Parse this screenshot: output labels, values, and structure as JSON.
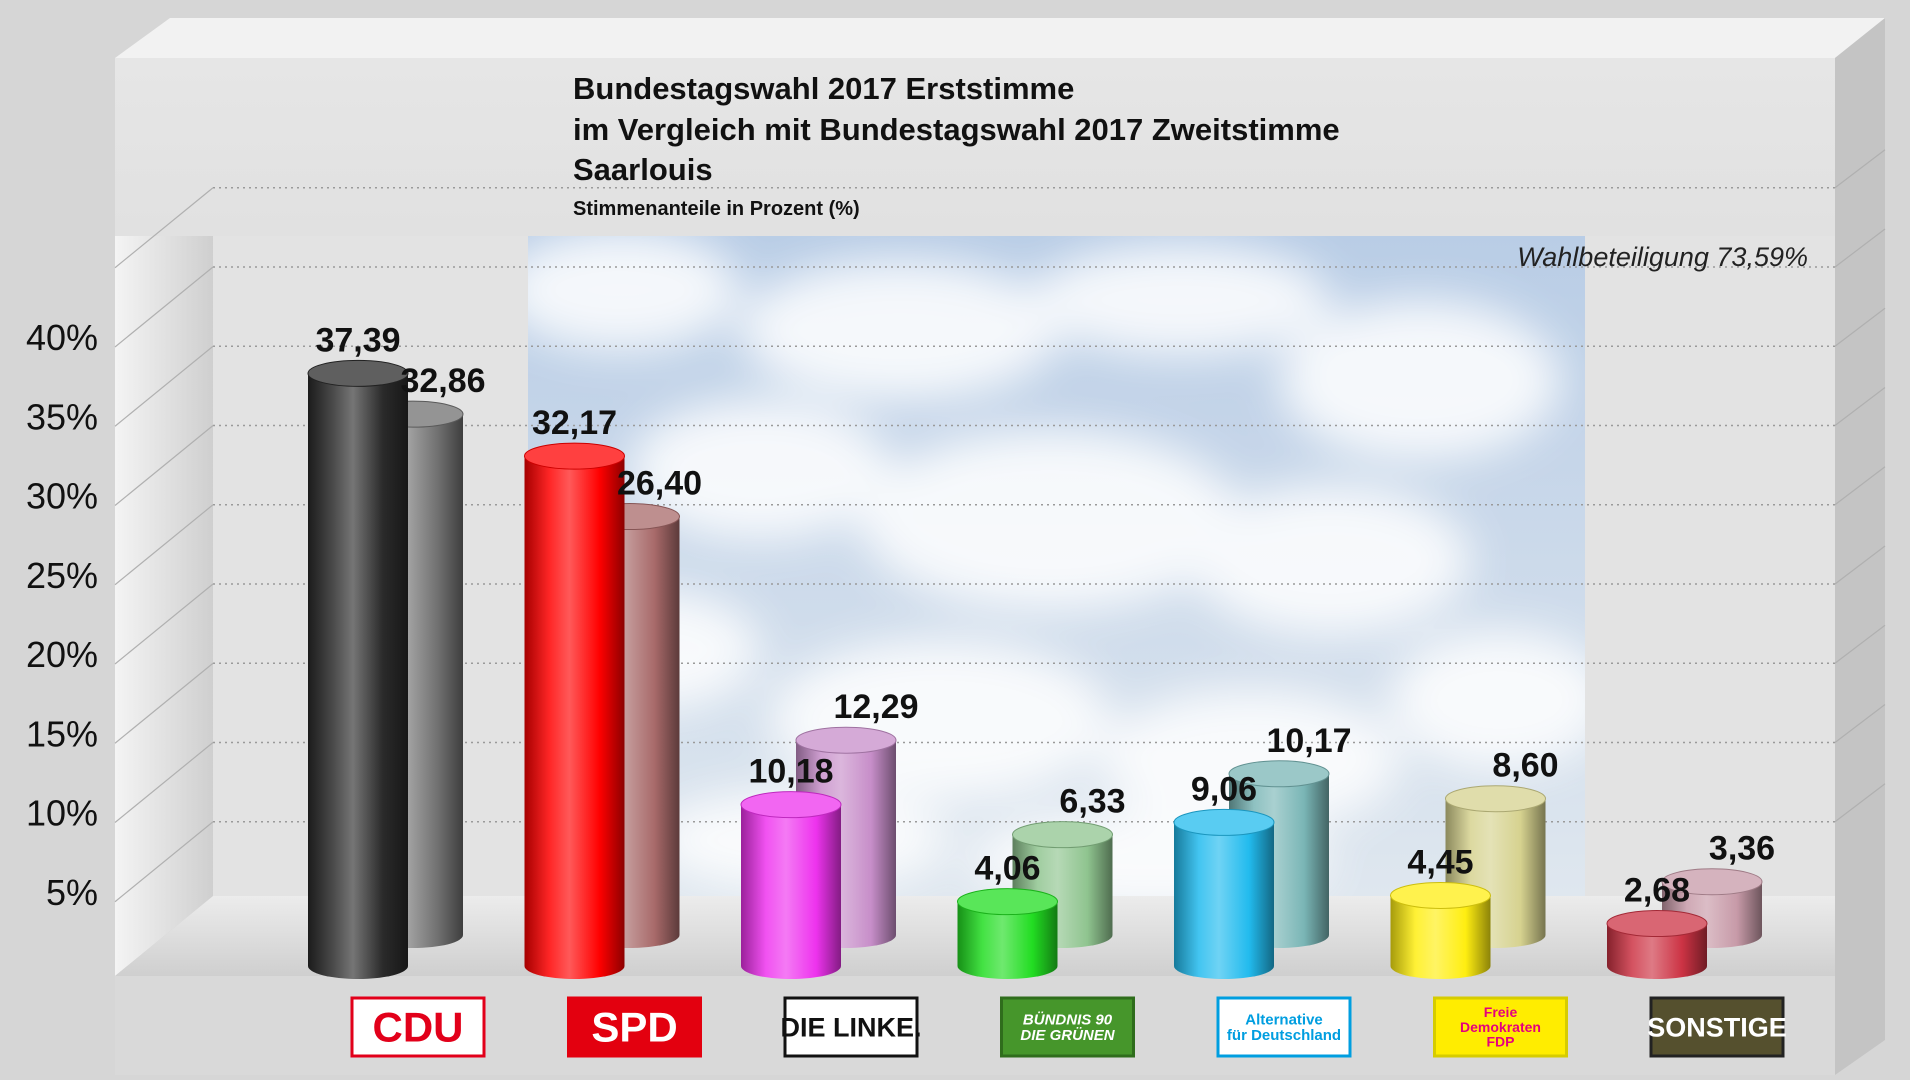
{
  "chart_data": {
    "type": "bar",
    "title": "Bundestagswahl 2017 Erststimme",
    "title_line2": "im Vergleich mit Bundestagswahl 2017 Zweitstimme",
    "title_line3": "Saarlouis",
    "subtitle": "Stimmenanteile in Prozent (%)",
    "annotation": "Wahlbeteiligung 73,59%",
    "categories": [
      "CDU",
      "SPD",
      "DIE LINKE.",
      "BÜNDNIS 90 DIE GRÜNEN",
      "Alternative für Deutschland",
      "Freie Demokraten FDP",
      "SONSTIGE"
    ],
    "series": [
      {
        "values": [
          37.39,
          32.17,
          10.18,
          4.06,
          9.06,
          4.45,
          2.68
        ],
        "labels": [
          "37,39",
          "32,17",
          "10,18",
          "4,06",
          "9,06",
          "4,45",
          "2,68"
        ]
      },
      {
        "values": [
          32.86,
          26.4,
          12.29,
          6.33,
          10.17,
          8.6,
          3.36
        ],
        "labels": [
          "32,86",
          "26,40",
          "12,29",
          "6,33",
          "10,17",
          "8,60",
          "3,36"
        ]
      }
    ],
    "ytick_labels": [
      "5%",
      "10%",
      "15%",
      "20%",
      "25%",
      "30%",
      "35%",
      "40%"
    ],
    "ylim": [
      0,
      40
    ],
    "grid": true,
    "colors": {
      "first": [
        "#2a2a2a",
        "#ff0000",
        "#ee33ee",
        "#22dd22",
        "#22bbee",
        "#ffee11",
        "#cc3344"
      ],
      "second": [
        "#707070",
        "#a86a6a",
        "#c78ec9",
        "#8fc48f",
        "#7ab6b6",
        "#d6d28f",
        "#c79aa8"
      ]
    }
  },
  "logos": [
    {
      "name": "cdu-logo",
      "text": "CDU",
      "bg": "#ffffff",
      "fg": "#e2001a",
      "border": "#e2001a"
    },
    {
      "name": "spd-logo",
      "text": "SPD",
      "bg": "#e3000f",
      "fg": "#ffffff",
      "border": "#e3000f"
    },
    {
      "name": "linke-logo",
      "text": "DIE LINKE.",
      "bg": "#ffffff",
      "fg": "#111111",
      "border": "#111111"
    },
    {
      "name": "gruene-logo",
      "text": "BÜNDNIS 90",
      "text2": "DIE GRÜNEN",
      "bg": "#46962b",
      "fg": "#ffffff",
      "border": "#2f6d1c"
    },
    {
      "name": "afd-logo",
      "text": "Alternative",
      "text2": "für Deutschland",
      "bg": "#ffffff",
      "fg": "#009ee0",
      "border": "#009ee0"
    },
    {
      "name": "fdp-logo",
      "text": "Freie",
      "text2": "Demokraten",
      "text3": "FDP",
      "bg": "#ffed00",
      "fg": "#e5007d",
      "border": "#d6cc00"
    },
    {
      "name": "sonstige-logo",
      "text": "SONSTIGE",
      "bg": "#55502e",
      "fg": "#ffffff",
      "border": "#222222"
    }
  ]
}
